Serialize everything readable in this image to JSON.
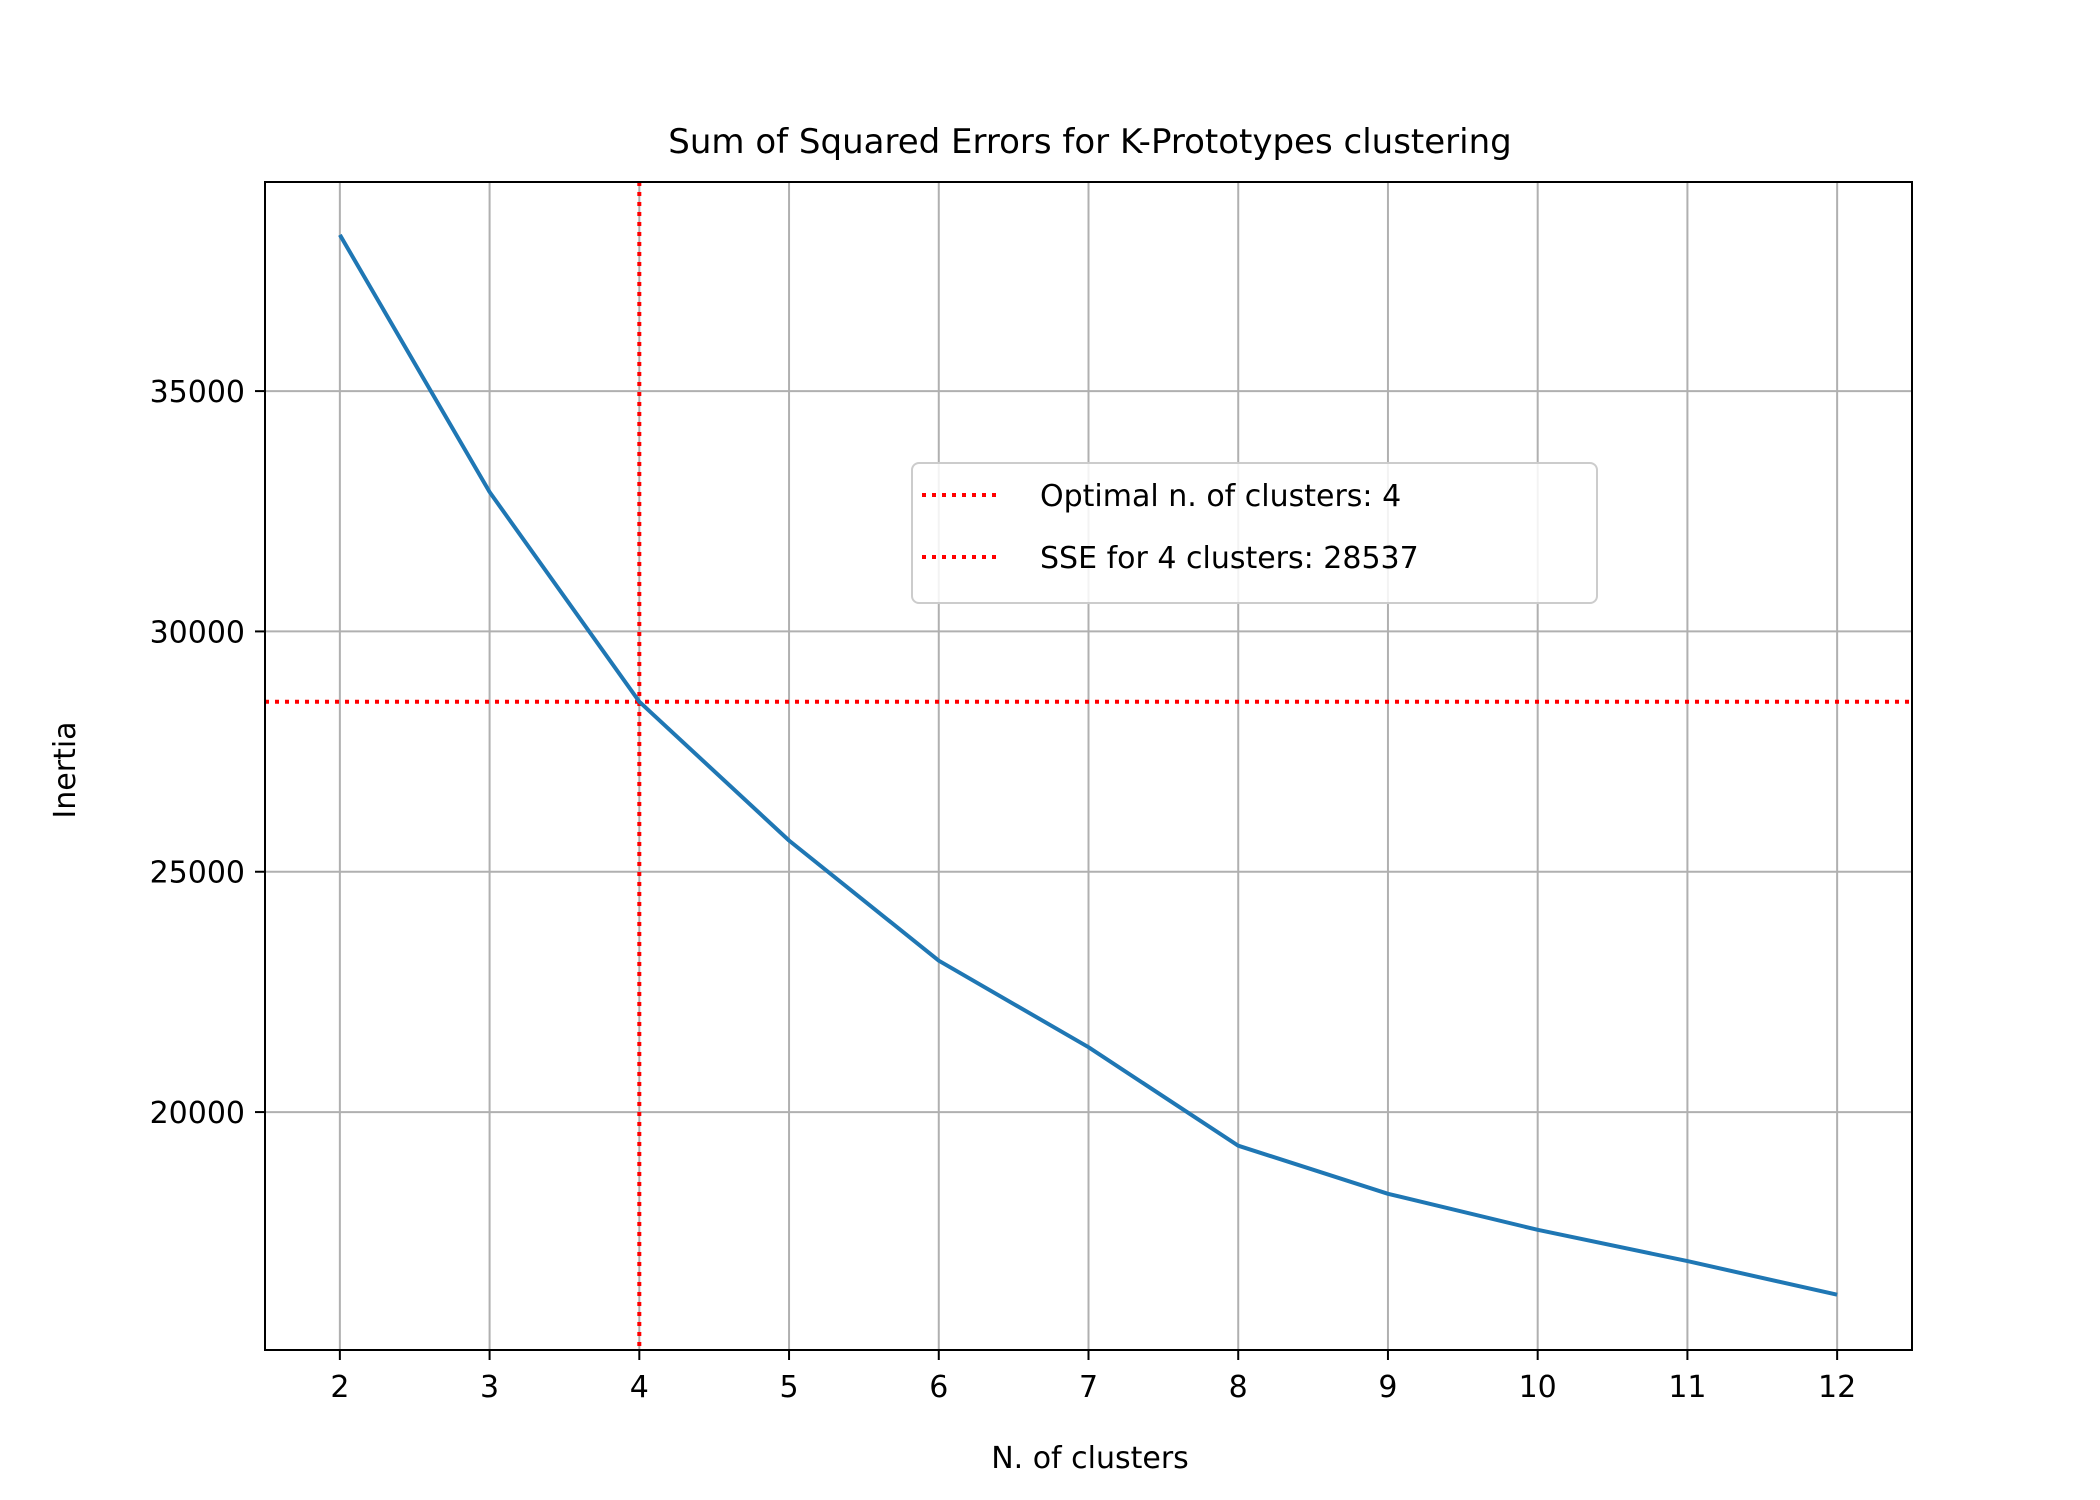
{
  "chart_data": {
    "type": "line",
    "title": "Sum of Squared Errors for K-Prototypes clustering",
    "xlabel": "N. of clusters",
    "ylabel": "Inertia",
    "x": [
      2,
      3,
      4,
      5,
      6,
      7,
      8,
      9,
      10,
      11,
      12
    ],
    "xlim": [
      1.5,
      12.5
    ],
    "ylim": [
      15050,
      39350
    ],
    "x_ticks": [
      2,
      3,
      4,
      5,
      6,
      7,
      8,
      9,
      10,
      11,
      12
    ],
    "y_ticks": [
      20000,
      25000,
      30000,
      35000
    ],
    "grid": true,
    "series": [
      {
        "color": "#1f77b4",
        "values": [
          38250,
          32900,
          28537,
          25650,
          23150,
          21350,
          19300,
          18300,
          17550,
          16900,
          16200
        ]
      }
    ],
    "reference_lines": [
      {
        "orientation": "vertical",
        "value": 4,
        "color": "#ff0000",
        "style": "dotted",
        "label": "Optimal n. of clusters: 4"
      },
      {
        "orientation": "horizontal",
        "value": 28537,
        "color": "#ff0000",
        "style": "dotted",
        "label": "SSE for 4 clusters: 28537"
      }
    ],
    "legend": {
      "position": "upper-center-right",
      "entries": [
        "Optimal n. of clusters: 4",
        "SSE for 4 clusters: 28537"
      ]
    }
  }
}
